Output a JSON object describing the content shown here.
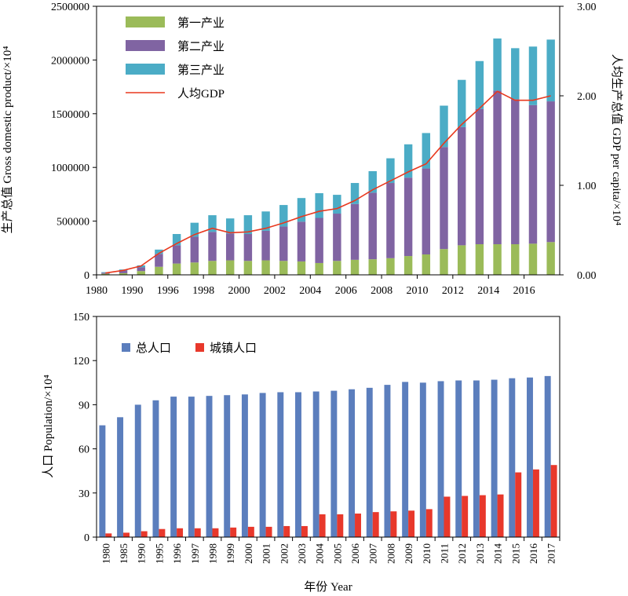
{
  "chart_data": [
    {
      "type": "bar",
      "stacked": true,
      "categories": [
        "1980",
        "1985",
        "1990",
        "1995",
        "1996",
        "1997",
        "1998",
        "1999",
        "2000",
        "2001",
        "2002",
        "2003",
        "2004",
        "2005",
        "2006",
        "2007",
        "2008",
        "2009",
        "2010",
        "2011",
        "2012",
        "2013",
        "2014",
        "2015",
        "2016",
        "2017"
      ],
      "tick_labels_x": [
        "1980",
        "1990",
        "1996",
        "1998",
        "2000",
        "2002",
        "2004",
        "2006",
        "2008",
        "2010",
        "2012",
        "2014",
        "2016"
      ],
      "ylabel": "生产总值 Gross domestic product/×10⁴",
      "y2label": "人均生产总值 GDP per capita/×10⁴",
      "ylim": [
        0,
        2500000
      ],
      "yticks": [
        "0",
        "500000",
        "1000000",
        "1500000",
        "2000000",
        "2500000"
      ],
      "y2lim": [
        0,
        3.0
      ],
      "y2ticks": [
        "0.00",
        "1.00",
        "2.00",
        "3.00"
      ],
      "legend_position": "top-left",
      "series": [
        {
          "name": "第一产业",
          "color": "#9BBB59",
          "values": [
            10000,
            15000,
            35000,
            75000,
            105000,
            115000,
            130000,
            135000,
            130000,
            135000,
            130000,
            125000,
            110000,
            130000,
            140000,
            145000,
            155000,
            175000,
            190000,
            240000,
            275000,
            285000,
            285000,
            285000,
            290000,
            305000
          ]
        },
        {
          "name": "第二产业",
          "color": "#8064A2",
          "values": [
            10000,
            25000,
            35000,
            120000,
            170000,
            240000,
            270000,
            250000,
            250000,
            275000,
            320000,
            370000,
            420000,
            440000,
            520000,
            620000,
            700000,
            730000,
            800000,
            950000,
            1100000,
            1260000,
            1430000,
            1350000,
            1290000,
            1310000
          ]
        },
        {
          "name": "第三产业",
          "color": "#4BACC6",
          "values": [
            5000,
            10000,
            18000,
            40000,
            105000,
            130000,
            155000,
            140000,
            175000,
            180000,
            200000,
            220000,
            230000,
            175000,
            195000,
            200000,
            230000,
            310000,
            330000,
            385000,
            440000,
            445000,
            485000,
            475000,
            545000,
            575000
          ]
        }
      ],
      "line_series": {
        "name": "人均GDP",
        "color": "#E8381E",
        "values": [
          0.02,
          0.05,
          0.1,
          0.24,
          0.35,
          0.45,
          0.52,
          0.47,
          0.48,
          0.52,
          0.58,
          0.65,
          0.71,
          0.74,
          0.83,
          0.95,
          1.05,
          1.15,
          1.24,
          1.47,
          1.68,
          1.86,
          2.05,
          1.95,
          1.95,
          2.0
        ]
      }
    },
    {
      "type": "bar",
      "categories": [
        "1980",
        "1985",
        "1990",
        "1995",
        "1996",
        "1997",
        "1998",
        "1999",
        "2000",
        "2001",
        "2002",
        "2003",
        "2004",
        "2005",
        "2006",
        "2007",
        "2008",
        "2009",
        "2010",
        "2011",
        "2012",
        "2013",
        "2014",
        "2015",
        "2016",
        "2017"
      ],
      "xlabel": "年份 Year",
      "ylabel": "人口 Population/×10⁴",
      "ylim": [
        0,
        150
      ],
      "yticks": [
        "0",
        "30",
        "60",
        "90",
        "120",
        "150"
      ],
      "legend_position": "top-left",
      "series": [
        {
          "name": "总人口",
          "color": "#5B7EBD",
          "values": [
            76,
            81.5,
            90,
            93,
            95.5,
            95.5,
            96,
            96.5,
            97,
            98,
            98.5,
            98.5,
            99,
            99.5,
            100.5,
            101.5,
            103.5,
            105.5,
            105,
            106,
            106.5,
            106.5,
            107,
            108,
            108.5,
            109.5
          ]
        },
        {
          "name": "城镇人口",
          "color": "#E8382B",
          "values": [
            2.5,
            3,
            4,
            5.5,
            6,
            6,
            6,
            6.5,
            7,
            7,
            7.5,
            7.5,
            15.5,
            15.5,
            16,
            17,
            17.5,
            18,
            19,
            27.5,
            28,
            28.5,
            29,
            44,
            46,
            49
          ]
        }
      ]
    }
  ]
}
